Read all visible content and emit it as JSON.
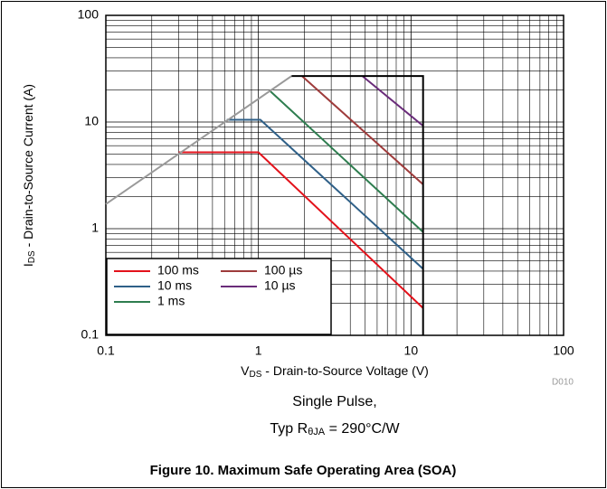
{
  "chart_data": {
    "type": "line",
    "x_label": {
      "main": "V",
      "sub": "DS",
      "rest": " - Drain-to-Source Voltage (V)"
    },
    "y_label": {
      "main": "I",
      "sub": "DS",
      "rest": " - Drain-to-Source Current (A)"
    },
    "note": "D010",
    "subtitle": {
      "line1": "Single Pulse,",
      "line2_main": "Typ R",
      "line2_sub": "θJA",
      "line2_rest": " = 290°C/W"
    },
    "caption": "Figure 10. Maximum Safe Operating Area (SOA)",
    "xscale": "log",
    "yscale": "log",
    "xlim": [
      0.1,
      100
    ],
    "ylim": [
      0.1,
      100
    ],
    "xticks": [
      0.1,
      1,
      10,
      100
    ],
    "yticks": [
      0.1,
      1,
      10,
      100
    ],
    "grid": true,
    "minor_grid": true,
    "legend": "lower left",
    "series": [
      {
        "name": "100 ms",
        "color": "#e3121b",
        "x": [
          0.3,
          1,
          12
        ],
        "values": [
          5.2,
          5.2,
          0.18
        ]
      },
      {
        "name": "10 ms",
        "color": "#2f6088",
        "x": [
          0.62,
          1.03,
          12
        ],
        "values": [
          10.5,
          10.5,
          0.42
        ]
      },
      {
        "name": "1 ms",
        "color": "#2e7d4f",
        "x": [
          1.18,
          12
        ],
        "values": [
          19.8,
          0.93
        ]
      },
      {
        "name": "100 µs",
        "color": "#9e3b3b",
        "x": [
          1.93,
          12
        ],
        "values": [
          27,
          2.6
        ]
      },
      {
        "name": "10 µs",
        "color": "#6a2c7a",
        "x": [
          4.8,
          12
        ],
        "values": [
          27,
          9.2
        ]
      },
      {
        "color": "#999999",
        "x": [
          0.1,
          1.65
        ],
        "values": [
          1.7,
          27
        ]
      },
      {
        "color": "#000000",
        "x": [
          1.65,
          12,
          12
        ],
        "values": [
          27,
          27,
          0.1
        ]
      }
    ]
  }
}
